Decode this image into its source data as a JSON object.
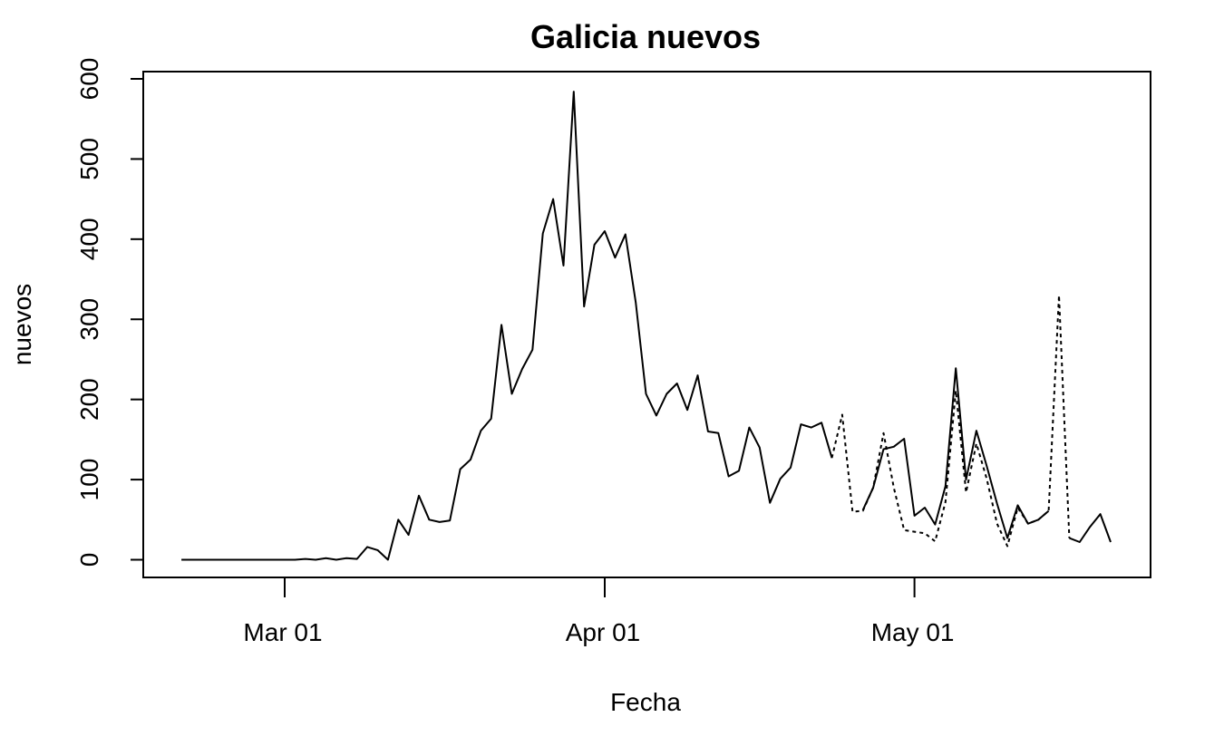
{
  "chart_data": {
    "type": "line",
    "title": "Galicia nuevos",
    "xlabel": "Fecha",
    "ylabel": "nuevos",
    "ylim": [
      0,
      600
    ],
    "xlim": [
      "2020-02-16",
      "2020-05-23"
    ],
    "x_ticks": [
      {
        "date": "2020-03-01",
        "label": "Mar 01"
      },
      {
        "date": "2020-04-01",
        "label": "Apr 01"
      },
      {
        "date": "2020-05-01",
        "label": "May 01"
      }
    ],
    "y_ticks": [
      0,
      100,
      200,
      300,
      400,
      500,
      600
    ],
    "grid": false,
    "legend": "none",
    "series": [
      {
        "style": "solid",
        "points": [
          [
            "2020-02-20",
            0
          ],
          [
            "2020-02-21",
            0
          ],
          [
            "2020-02-22",
            0
          ],
          [
            "2020-02-23",
            0
          ],
          [
            "2020-02-24",
            0
          ],
          [
            "2020-02-25",
            0
          ],
          [
            "2020-02-26",
            0
          ],
          [
            "2020-02-27",
            0
          ],
          [
            "2020-02-28",
            0
          ],
          [
            "2020-02-29",
            0
          ],
          [
            "2020-03-01",
            0
          ],
          [
            "2020-03-02",
            0
          ],
          [
            "2020-03-03",
            1
          ],
          [
            "2020-03-04",
            0
          ],
          [
            "2020-03-05",
            2
          ],
          [
            "2020-03-06",
            0
          ],
          [
            "2020-03-07",
            2
          ],
          [
            "2020-03-08",
            1
          ],
          [
            "2020-03-09",
            16
          ],
          [
            "2020-03-10",
            12
          ],
          [
            "2020-03-11",
            0
          ],
          [
            "2020-03-12",
            50
          ],
          [
            "2020-03-13",
            31
          ],
          [
            "2020-03-14",
            80
          ],
          [
            "2020-03-15",
            50
          ],
          [
            "2020-03-16",
            47
          ],
          [
            "2020-03-17",
            49
          ],
          [
            "2020-03-18",
            113
          ],
          [
            "2020-03-19",
            125
          ],
          [
            "2020-03-20",
            161
          ],
          [
            "2020-03-21",
            176
          ],
          [
            "2020-03-22",
            293
          ],
          [
            "2020-03-23",
            207
          ],
          [
            "2020-03-24",
            238
          ],
          [
            "2020-03-25",
            262
          ],
          [
            "2020-03-26",
            407
          ],
          [
            "2020-03-27",
            450
          ],
          [
            "2020-03-28",
            367
          ],
          [
            "2020-03-29",
            584
          ],
          [
            "2020-03-30",
            316
          ],
          [
            "2020-03-31",
            393
          ],
          [
            "2020-04-01",
            410
          ],
          [
            "2020-04-02",
            377
          ],
          [
            "2020-04-03",
            406
          ],
          [
            "2020-04-04",
            321
          ],
          [
            "2020-04-05",
            207
          ],
          [
            "2020-04-06",
            180
          ],
          [
            "2020-04-07",
            207
          ],
          [
            "2020-04-08",
            220
          ],
          [
            "2020-04-09",
            187
          ],
          [
            "2020-04-10",
            230
          ],
          [
            "2020-04-11",
            160
          ],
          [
            "2020-04-12",
            158
          ],
          [
            "2020-04-13",
            104
          ],
          [
            "2020-04-14",
            111
          ],
          [
            "2020-04-15",
            165
          ],
          [
            "2020-04-16",
            140
          ],
          [
            "2020-04-17",
            71
          ],
          [
            "2020-04-18",
            101
          ],
          [
            "2020-04-19",
            115
          ],
          [
            "2020-04-20",
            169
          ],
          [
            "2020-04-21",
            165
          ],
          [
            "2020-04-22",
            171
          ],
          [
            "2020-04-23",
            127
          ],
          [
            "2020-04-24",
            null
          ],
          [
            "2020-04-25",
            null
          ],
          [
            "2020-04-26",
            62
          ],
          [
            "2020-04-27",
            90
          ],
          [
            "2020-04-28",
            138
          ],
          [
            "2020-04-29",
            141
          ],
          [
            "2020-04-30",
            151
          ],
          [
            "2020-05-01",
            55
          ],
          [
            "2020-05-02",
            65
          ],
          [
            "2020-05-03",
            44
          ],
          [
            "2020-05-04",
            92
          ],
          [
            "2020-05-05",
            239
          ],
          [
            "2020-05-06",
            100
          ],
          [
            "2020-05-07",
            161
          ],
          [
            "2020-05-08",
            117
          ],
          [
            "2020-05-09",
            70
          ],
          [
            "2020-05-10",
            27
          ],
          [
            "2020-05-11",
            68
          ],
          [
            "2020-05-12",
            45
          ],
          [
            "2020-05-13",
            50
          ],
          [
            "2020-05-14",
            61
          ],
          [
            "2020-05-15",
            null
          ],
          [
            "2020-05-16",
            27
          ],
          [
            "2020-05-17",
            22
          ],
          [
            "2020-05-18",
            41
          ],
          [
            "2020-05-19",
            57
          ],
          [
            "2020-05-20",
            22
          ]
        ]
      },
      {
        "style": "dotted",
        "points": [
          [
            "2020-04-23",
            127
          ],
          [
            "2020-04-24",
            181
          ],
          [
            "2020-04-25",
            60
          ],
          [
            "2020-04-26",
            61
          ],
          [
            "2020-04-27",
            90
          ],
          [
            "2020-04-28",
            158
          ],
          [
            "2020-04-29",
            90
          ],
          [
            "2020-04-30",
            37
          ],
          [
            "2020-05-01",
            35
          ],
          [
            "2020-05-02",
            33
          ],
          [
            "2020-05-03",
            23
          ],
          [
            "2020-05-04",
            72
          ],
          [
            "2020-05-05",
            211
          ],
          [
            "2020-05-06",
            84
          ],
          [
            "2020-05-07",
            145
          ],
          [
            "2020-05-08",
            101
          ],
          [
            "2020-05-09",
            45
          ],
          [
            "2020-05-10",
            17
          ],
          [
            "2020-05-11",
            65
          ],
          [
            "2020-05-12",
            45
          ],
          [
            "2020-05-13",
            50
          ],
          [
            "2020-05-14",
            61
          ],
          [
            "2020-05-15",
            330
          ],
          [
            "2020-05-16",
            27
          ]
        ]
      }
    ]
  }
}
